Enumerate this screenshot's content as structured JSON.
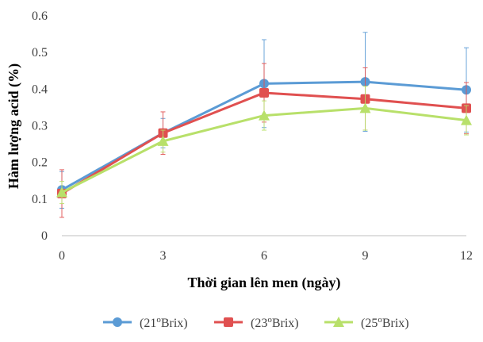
{
  "chart_data": {
    "type": "line",
    "x": [
      0,
      3,
      6,
      9,
      12
    ],
    "xlabel": "Thời gian lên men (ngày)",
    "ylabel": "Hàm lượng acid (%)",
    "ylim": [
      0,
      0.6
    ],
    "yticks": [
      "0",
      "0.1",
      "0.2",
      "0.3",
      "0.4",
      "0.5",
      "0.6"
    ],
    "xticks": [
      "0",
      "3",
      "6",
      "9",
      "12"
    ],
    "grid": false,
    "legend_position": "bottom",
    "series": [
      {
        "name_prefix": "(21",
        "name_sup": "o",
        "name_suffix": "Brix)",
        "color": "#5b9bd5",
        "marker": "circle",
        "values": [
          0.125,
          0.28,
          0.415,
          0.42,
          0.398
        ],
        "error": [
          0.05,
          0.04,
          0.12,
          0.135,
          0.115
        ]
      },
      {
        "name_prefix": "(23",
        "name_sup": "o",
        "name_suffix": "Brix)",
        "color": "#e05050",
        "marker": "square",
        "values": [
          0.115,
          0.28,
          0.39,
          0.373,
          0.348
        ],
        "error": [
          0.065,
          0.058,
          0.08,
          0.085,
          0.07
        ]
      },
      {
        "name_prefix": "(25",
        "name_sup": "o",
        "name_suffix": "Brix)",
        "color": "#b8e06a",
        "marker": "triangle",
        "values": [
          0.118,
          0.258,
          0.328,
          0.348,
          0.315
        ],
        "error": [
          0.03,
          0.03,
          0.04,
          0.06,
          0.04
        ]
      }
    ]
  }
}
